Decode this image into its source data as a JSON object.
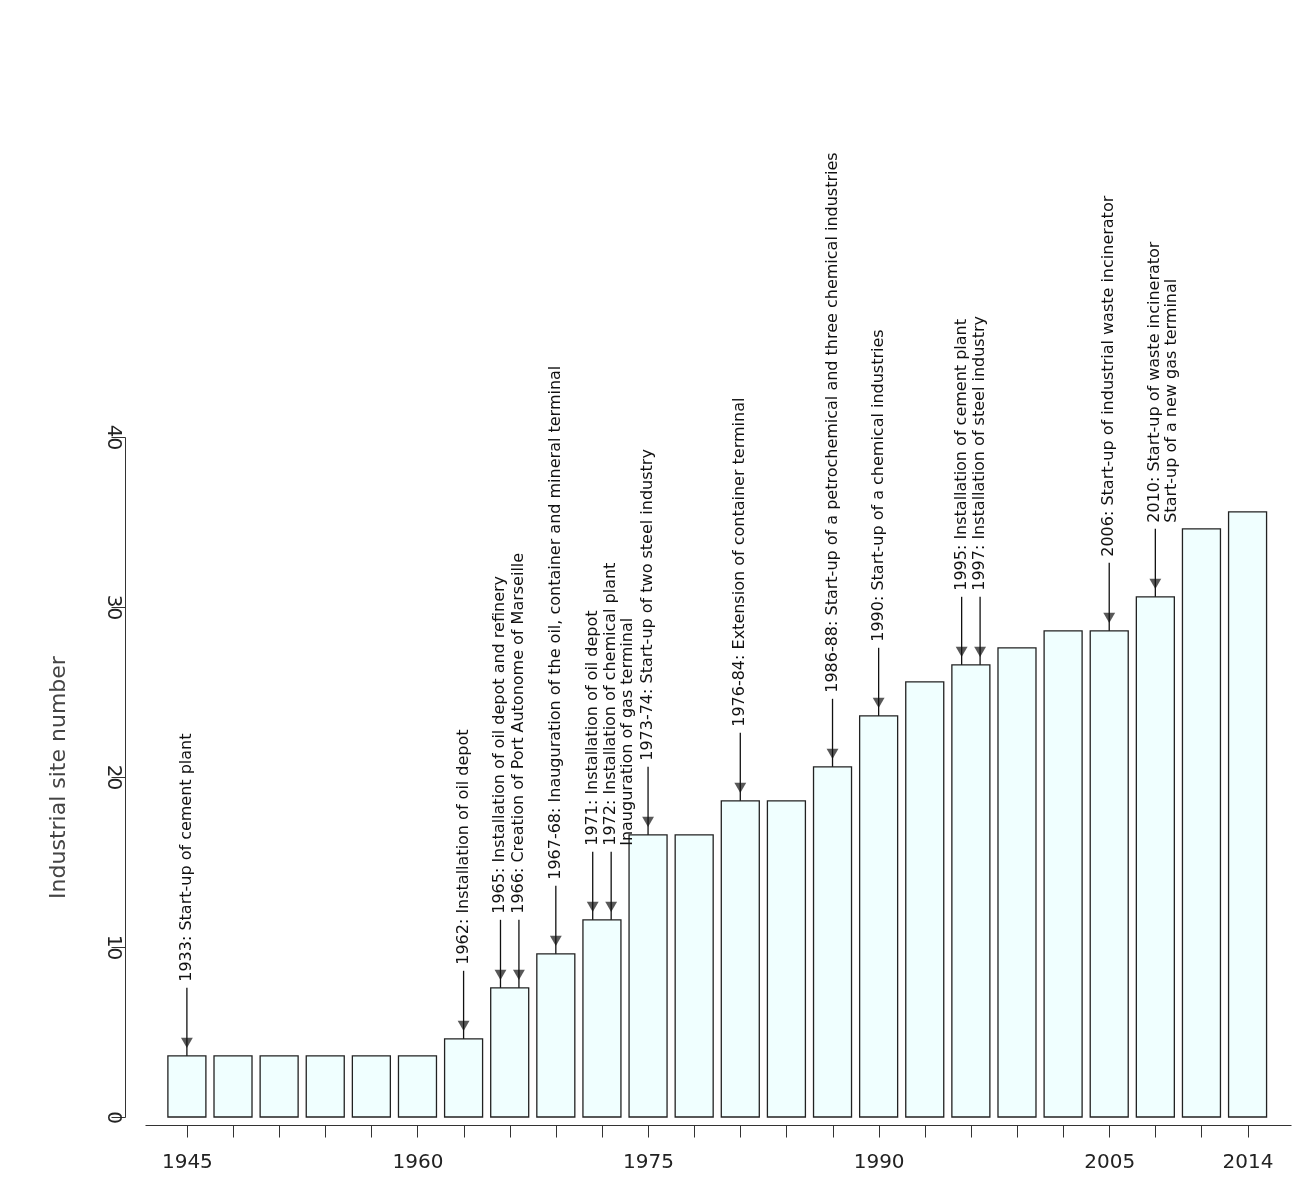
{
  "chart_data": {
    "type": "bar",
    "ylabel": "Industrial site number",
    "x": [
      1945,
      1948,
      1951,
      1954,
      1957,
      1960,
      1963,
      1966,
      1969,
      1972,
      1975,
      1978,
      1981,
      1984,
      1987,
      1990,
      1993,
      1996,
      1999,
      2002,
      2005,
      2008,
      2011,
      2014
    ],
    "values": [
      3.6,
      3.6,
      3.6,
      3.6,
      3.6,
      3.6,
      4.6,
      7.6,
      9.6,
      11.6,
      16.6,
      16.6,
      18.6,
      18.6,
      20.6,
      23.6,
      25.6,
      26.6,
      27.6,
      28.6,
      28.6,
      30.6,
      34.6,
      35.6
    ],
    "color": "#f0ffff",
    "xlim": [
      1942.6,
      2016.5
    ],
    "xticks": [
      1945,
      {
        "value": 1948,
        "label": null
      },
      {
        "value": 1951,
        "label": null
      },
      {
        "value": 1954,
        "label": null
      },
      {
        "value": 1957,
        "label": null
      },
      1960,
      {
        "value": 1963,
        "label": null
      },
      {
        "value": 1966,
        "label": null
      },
      {
        "value": 1969,
        "label": null
      },
      {
        "value": 1972,
        "label": null
      },
      1975,
      {
        "value": 1978,
        "label": null
      },
      {
        "value": 1981,
        "label": null
      },
      {
        "value": 1984,
        "label": null
      },
      {
        "value": 1987,
        "label": null
      },
      1990,
      {
        "value": 1993,
        "label": null
      },
      {
        "value": 1996,
        "label": null
      },
      {
        "value": 1999,
        "label": null
      },
      {
        "value": 2002,
        "label": null
      },
      2005,
      {
        "value": 2008,
        "label": null
      },
      {
        "value": 2011,
        "label": null
      },
      2014
    ],
    "ylim": [
      0,
      40
    ],
    "yticks": [
      0,
      10,
      20,
      30,
      40
    ],
    "grid": false,
    "annotations": [
      {
        "text": "1933: Start-up of cement plant",
        "x": 1945,
        "y": 3.6
      },
      {
        "text": "1962: Installation of oil depot",
        "x": 1963,
        "y": 4.6
      },
      {
        "text": "1965: Installation of oil depot and refinery",
        "x": 1965.4,
        "y": 7.6
      },
      {
        "text": "1966: Creation of Port Autonome of Marseille",
        "x": 1966.6,
        "y": 7.6
      },
      {
        "text": "1967-68: Inauguration of the oil, container and mineral terminal",
        "x": 1969,
        "y": 9.6
      },
      {
        "text": "1971: Installation of oil depot",
        "x": 1971.4,
        "y": 11.6
      },
      {
        "text": "1972: Installation of chemical plant\nInauguration  of gas terminal",
        "x": 1972.6,
        "y": 11.6
      },
      {
        "text": "1973-74: Start-up of two steel industry",
        "x": 1975,
        "y": 16.6
      },
      {
        "text": "1976-84: Extension of container terminal",
        "x": 1981,
        "y": 18.6
      },
      {
        "text": "1986-88: Start-up of a petrochemical and three chemical industries",
        "x": 1987,
        "y": 20.6
      },
      {
        "text": "1990: Start-up of a chemical industries",
        "x": 1990,
        "y": 23.6
      },
      {
        "text": "1995: Installation of cement plant",
        "x": 1995.4,
        "y": 26.6
      },
      {
        "text": "1997: Installation of steel industry",
        "x": 1996.6,
        "y": 26.6
      },
      {
        "text": "2006: Start-up of industrial waste incinerator",
        "x": 2005,
        "y": 28.6
      },
      {
        "text": "2010: Start-up of waste incinerator\nStart-up of a new gas terminal",
        "x": 2008,
        "y": 30.6
      }
    ]
  }
}
